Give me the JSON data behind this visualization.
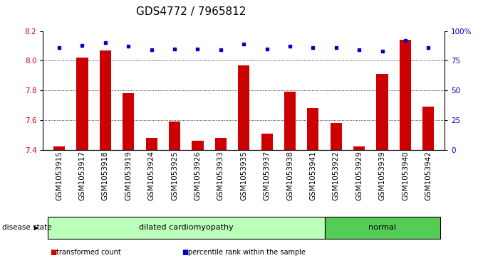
{
  "title": "GDS4772 / 7965812",
  "samples": [
    "GSM1053915",
    "GSM1053917",
    "GSM1053918",
    "GSM1053919",
    "GSM1053924",
    "GSM1053925",
    "GSM1053926",
    "GSM1053933",
    "GSM1053935",
    "GSM1053937",
    "GSM1053938",
    "GSM1053941",
    "GSM1053922",
    "GSM1053929",
    "GSM1053939",
    "GSM1053940",
    "GSM1053942"
  ],
  "bar_values": [
    7.42,
    8.02,
    8.07,
    7.78,
    7.48,
    7.59,
    7.46,
    7.48,
    7.97,
    7.51,
    7.79,
    7.68,
    7.58,
    7.42,
    7.91,
    8.14,
    7.69
  ],
  "percentile_values": [
    86,
    88,
    90,
    87,
    84,
    85,
    85,
    84,
    89,
    85,
    87,
    86,
    86,
    84,
    83,
    92,
    86
  ],
  "bar_color": "#cc0000",
  "percentile_color": "#0000cc",
  "ylim_left": [
    7.4,
    8.2
  ],
  "ylim_right": [
    0,
    100
  ],
  "yticks_left": [
    7.4,
    7.6,
    7.8,
    8.0,
    8.2
  ],
  "yticks_right": [
    0,
    25,
    50,
    75,
    100
  ],
  "ytick_labels_right": [
    "0",
    "25",
    "50",
    "75",
    "100%"
  ],
  "grid_values": [
    7.6,
    7.8,
    8.0
  ],
  "disease_groups": [
    {
      "label": "dilated cardiomyopathy",
      "start": 0,
      "end": 12,
      "color": "#bbffbb"
    },
    {
      "label": "normal",
      "start": 12,
      "end": 17,
      "color": "#55cc55"
    }
  ],
  "disease_state_label": "disease state",
  "legend_items": [
    {
      "color": "#cc0000",
      "label": "transformed count"
    },
    {
      "color": "#0000cc",
      "label": "percentile rank within the sample"
    }
  ],
  "plot_bg": "#ffffff",
  "bar_width": 0.5,
  "title_fontsize": 11,
  "tick_fontsize": 7.5,
  "label_fontsize": 8
}
